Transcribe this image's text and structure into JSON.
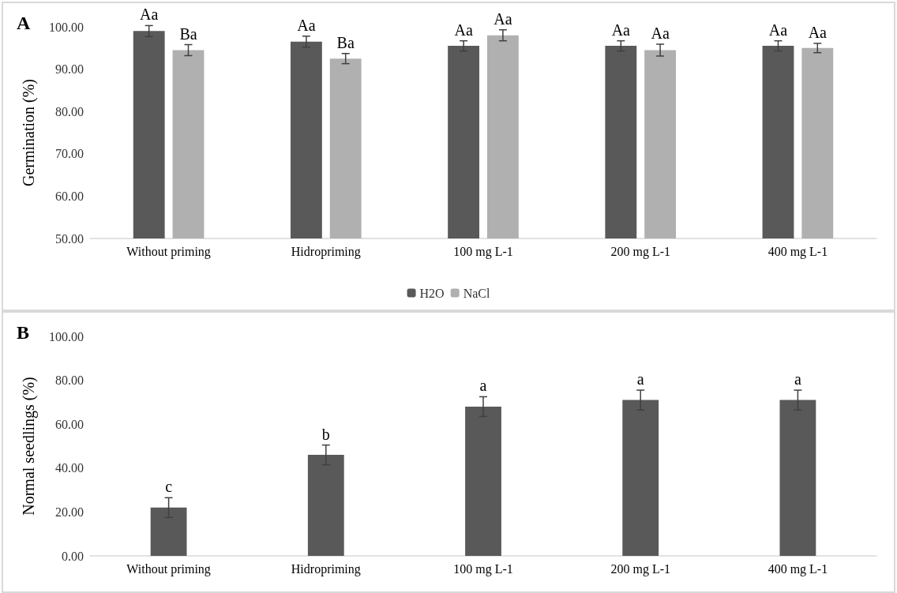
{
  "chart_data": [
    {
      "type": "bar",
      "title": "A",
      "ylabel": "Germination (%)",
      "categories": [
        "Without priming",
        "Hidropriming",
        "100 mg L-1",
        "200 mg L-1",
        "400 mg L-1"
      ],
      "series": [
        {
          "name": "H2O",
          "color": "#595959",
          "values": [
            99,
            96.5,
            95.5,
            95.5,
            95.5
          ],
          "errors": [
            1.3,
            1.3,
            1.2,
            1.2,
            1.2
          ],
          "value_labels": [
            "Aa",
            "Aa",
            "Aa",
            "Aa",
            "Aa"
          ]
        },
        {
          "name": "NaCl",
          "color": "#b0b0b0",
          "values": [
            94.5,
            92.5,
            98,
            94.5,
            95
          ],
          "errors": [
            1.3,
            1.2,
            1.3,
            1.4,
            1.1
          ],
          "value_labels": [
            "Ba",
            "Ba",
            "Aa",
            "Aa",
            "Aa"
          ]
        }
      ],
      "ylim": [
        50,
        100
      ],
      "yticks": [
        {
          "value": 50,
          "label": "50.00"
        },
        {
          "value": 60,
          "label": "60.00"
        },
        {
          "value": 70,
          "label": "70.00"
        },
        {
          "value": 80,
          "label": "80.00"
        },
        {
          "value": 90,
          "label": "90.00"
        },
        {
          "value": 100,
          "label": "100.00"
        }
      ],
      "legend": "bottom",
      "grid": false
    },
    {
      "type": "bar",
      "title": "B",
      "ylabel": "Normal seedlings (%)",
      "categories": [
        "Without priming",
        "Hidropriming",
        "100 mg L-1",
        "200 mg L-1",
        "400 mg L-1"
      ],
      "series": [
        {
          "color": "#595959",
          "values": [
            22,
            46,
            68,
            71,
            71
          ],
          "errors": [
            4.5,
            4.5,
            4.5,
            4.5,
            4.5
          ],
          "value_labels": [
            "c",
            "b",
            "a",
            "a",
            "a"
          ]
        }
      ],
      "ylim": [
        0,
        100
      ],
      "yticks": [
        {
          "value": 0,
          "label": "0.00"
        },
        {
          "value": 20,
          "label": "20.00"
        },
        {
          "value": 40,
          "label": "40.00"
        },
        {
          "value": 60,
          "label": "60.00"
        },
        {
          "value": 80,
          "label": "80.00"
        },
        {
          "value": 100,
          "label": "100.00"
        }
      ],
      "grid": false
    }
  ]
}
